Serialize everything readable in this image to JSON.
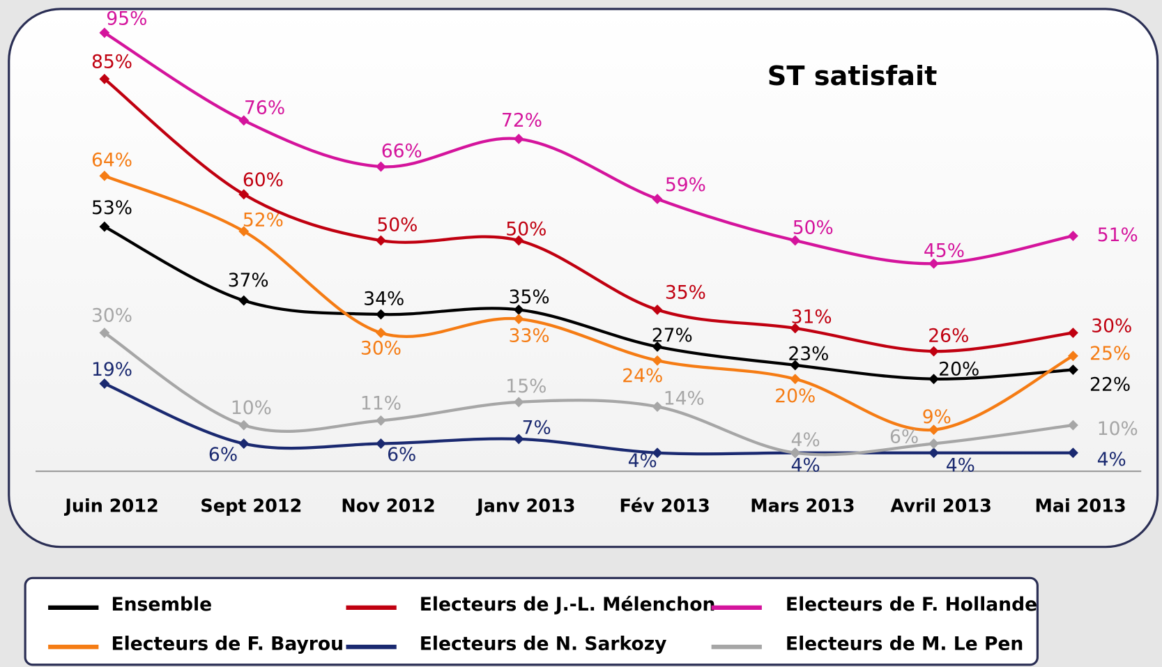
{
  "chart_data": {
    "type": "line",
    "title": "ST satisfait",
    "categories": [
      "Juin 2012",
      "Sept 2012",
      "Nov 2012",
      "Janv 2013",
      "Fév 2013",
      "Mars 2013",
      "Avril 2013",
      "Mai 2013"
    ],
    "ylim": [
      0,
      100
    ],
    "series": [
      {
        "name": "Ensemble",
        "color": "#000000",
        "values": [
          53,
          37,
          34,
          35,
          27,
          23,
          20,
          22
        ],
        "value_labels": [
          "53%",
          "37%",
          "34%",
          "35%",
          "27%",
          "23%",
          "20%",
          "22%"
        ]
      },
      {
        "name": "Electeurs de F. Bayrou",
        "color": "#f57c14",
        "values": [
          64,
          52,
          30,
          33,
          24,
          20,
          9,
          25
        ],
        "value_labels": [
          "64%",
          "52%",
          "30%",
          "33%",
          "24%",
          "20%",
          "9%",
          "25%"
        ]
      },
      {
        "name": "Electeurs de J.-L. Mélenchon",
        "color": "#c00010",
        "values": [
          85,
          60,
          50,
          50,
          35,
          31,
          26,
          30
        ],
        "value_labels": [
          "85%",
          "60%",
          "50%",
          "50%",
          "35%",
          "31%",
          "26%",
          "30%"
        ]
      },
      {
        "name": "Electeurs de N. Sarkozy",
        "color": "#1a2970",
        "values": [
          19,
          6,
          6,
          7,
          4,
          4,
          4,
          4
        ],
        "value_labels": [
          "19%",
          "6%",
          "6%",
          "7%",
          "4%",
          "4%",
          "4%",
          "4%"
        ]
      },
      {
        "name": "Electeurs de F. Hollande",
        "color": "#d4149c",
        "values": [
          95,
          76,
          66,
          72,
          59,
          50,
          45,
          51
        ],
        "value_labels": [
          "95%",
          "76%",
          "66%",
          "72%",
          "59%",
          "50%",
          "45%",
          "51%"
        ]
      },
      {
        "name": "Electeurs de M. Le Pen",
        "color": "#a6a6a6",
        "values": [
          30,
          10,
          11,
          15,
          14,
          4,
          6,
          10
        ],
        "value_labels": [
          "30%",
          "10%",
          "11%",
          "15%",
          "14%",
          "4%",
          "6%",
          "10%"
        ]
      }
    ]
  }
}
